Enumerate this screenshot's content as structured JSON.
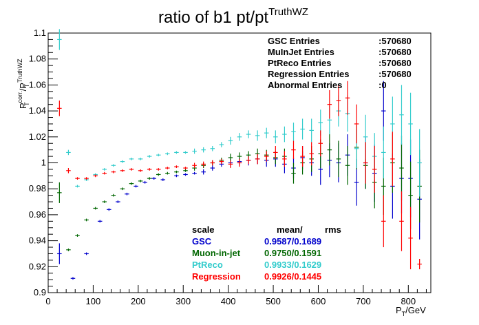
{
  "chart_data": {
    "type": "scatter",
    "title": "ratio of b1 pt/pt",
    "title_sup": "TruthWZ",
    "xlabel": "P",
    "xlabel_sub": "T",
    "xlabel_unit": "/GeV",
    "ylabel_parts": [
      "P",
      "corr.",
      "T",
      "/P",
      "TruthWZ",
      "T"
    ],
    "xlim": [
      0,
      850
    ],
    "ylim": [
      0.9,
      1.1
    ],
    "x_major_ticks": [
      0,
      100,
      200,
      300,
      400,
      500,
      600,
      700,
      800
    ],
    "x_tick_labels": [
      "0",
      "100",
      "200",
      "300",
      "400",
      "500",
      "600",
      "700",
      "800"
    ],
    "y_major_ticks": [
      0.9,
      0.92,
      0.94,
      0.96,
      0.98,
      1,
      1.02,
      1.04,
      1.06,
      1.08,
      1.1
    ],
    "y_tick_labels": [
      "0.9",
      "0.92",
      "0.94",
      "0.96",
      "0.98",
      "1",
      "1.02",
      "1.04",
      "1.06",
      "1.08",
      "1.1"
    ],
    "grid": false,
    "legend_position": "top-right",
    "entries_box": [
      {
        "label": "GSC Entries",
        "value": ":570680"
      },
      {
        "label": "MuInJet Entries",
        "value": ":570680"
      },
      {
        "label": "PtReco Entries",
        "value": ":570680"
      },
      {
        "label": "Regression Entries",
        "value": ":570680"
      },
      {
        "label": "Abnormal Entries",
        "value": ":0"
      }
    ],
    "stats_header": {
      "col1": "scale",
      "col2": "mean/",
      "col3": "rms"
    },
    "stats": [
      {
        "name": "GSC",
        "value": "0.9587/0.1689",
        "color": "#0000cc"
      },
      {
        "name": "Muon-in-jet",
        "value": "0.9750/0.1591",
        "color": "#006600"
      },
      {
        "name": "PtReco",
        "value": "0.9933/0.1629",
        "color": "#33cccc"
      },
      {
        "name": "Regression",
        "value": "0.9926/0.1445",
        "color": "#ff0000"
      }
    ],
    "bin_halfwidth": 5,
    "series": [
      {
        "color": "#0000cc",
        "points": [
          [
            25,
            0.93,
            0.008
          ],
          [
            55,
            0.911,
            0.001
          ],
          [
            85,
            0.93,
            0.001
          ],
          [
            115,
            0.955,
            0.001
          ],
          [
            135,
            0.964,
            0.001
          ],
          [
            155,
            0.97,
            0.001
          ],
          [
            175,
            0.976,
            0.001
          ],
          [
            195,
            0.982,
            0.001
          ],
          [
            215,
            0.985,
            0.001
          ],
          [
            235,
            0.988,
            0.001
          ],
          [
            255,
            0.987,
            0.001
          ],
          [
            285,
            0.99,
            0.001
          ],
          [
            305,
            0.991,
            0.001
          ],
          [
            325,
            0.992,
            0.001
          ],
          [
            345,
            0.993,
            0.002
          ],
          [
            365,
            0.996,
            0.002
          ],
          [
            385,
            0.999,
            0.002
          ],
          [
            405,
            1.0,
            0.003
          ],
          [
            425,
            1.001,
            0.003
          ],
          [
            445,
            1.002,
            0.004
          ],
          [
            465,
            1.003,
            0.004
          ],
          [
            485,
            1.002,
            0.005
          ],
          [
            505,
            1.003,
            0.006
          ],
          [
            525,
            0.999,
            0.007
          ],
          [
            545,
            0.996,
            0.008
          ],
          [
            565,
            1.004,
            0.009
          ],
          [
            585,
            1.0,
            0.01
          ],
          [
            605,
            0.995,
            0.012
          ],
          [
            625,
            1.002,
            0.013
          ],
          [
            645,
            1.0,
            0.015
          ],
          [
            665,
            1.006,
            0.016
          ],
          [
            685,
            0.985,
            0.018
          ],
          [
            705,
            1.0,
            0.02
          ],
          [
            725,
            0.992,
            0.022
          ],
          [
            745,
            1.04,
            0.023
          ],
          [
            765,
            0.982,
            0.025
          ],
          [
            785,
            0.988,
            0.027
          ],
          [
            805,
            0.988,
            0.03
          ],
          [
            825,
            0.972,
            0.031
          ]
        ]
      },
      {
        "color": "#006600",
        "points": [
          [
            25,
            0.977,
            0.008
          ],
          [
            45,
            0.933,
            0.001
          ],
          [
            65,
            0.944,
            0.001
          ],
          [
            85,
            0.956,
            0.001
          ],
          [
            105,
            0.965,
            0.001
          ],
          [
            125,
            0.97,
            0.001
          ],
          [
            145,
            0.975,
            0.001
          ],
          [
            165,
            0.98,
            0.001
          ],
          [
            185,
            0.984,
            0.001
          ],
          [
            205,
            0.986,
            0.001
          ],
          [
            225,
            0.988,
            0.001
          ],
          [
            245,
            0.991,
            0.001
          ],
          [
            265,
            0.992,
            0.001
          ],
          [
            285,
            0.993,
            0.001
          ],
          [
            305,
            0.994,
            0.001
          ],
          [
            325,
            0.996,
            0.002
          ],
          [
            345,
            0.998,
            0.002
          ],
          [
            365,
            1.0,
            0.002
          ],
          [
            385,
            1.002,
            0.002
          ],
          [
            405,
            1.004,
            0.003
          ],
          [
            425,
            1.005,
            0.003
          ],
          [
            445,
            1.006,
            0.003
          ],
          [
            465,
            1.007,
            0.004
          ],
          [
            485,
            1.006,
            0.004
          ],
          [
            505,
            1.004,
            0.005
          ],
          [
            525,
            1.005,
            0.006
          ],
          [
            545,
            0.992,
            0.008
          ],
          [
            565,
            1.0,
            0.009
          ],
          [
            585,
            1.003,
            0.01
          ],
          [
            605,
            1.007,
            0.011
          ],
          [
            625,
            1.01,
            0.012
          ],
          [
            645,
            1.003,
            0.014
          ],
          [
            665,
            0.998,
            0.015
          ],
          [
            685,
            1.012,
            0.017
          ],
          [
            705,
            0.998,
            0.018
          ],
          [
            725,
            0.985,
            0.02
          ],
          [
            745,
            0.982,
            0.022
          ],
          [
            765,
            1.0,
            0.023
          ],
          [
            785,
            0.996,
            0.025
          ],
          [
            805,
            0.975,
            0.026
          ],
          [
            825,
            0.982,
            0.028
          ]
        ]
      },
      {
        "color": "#33cccc",
        "points": [
          [
            25,
            1.095,
            0.008
          ],
          [
            45,
            1.008,
            0.002
          ],
          [
            65,
            0.982,
            0.001
          ],
          [
            85,
            0.987,
            0.001
          ],
          [
            105,
            0.991,
            0.001
          ],
          [
            125,
            0.995,
            0.001
          ],
          [
            145,
            0.998,
            0.001
          ],
          [
            165,
            1.001,
            0.001
          ],
          [
            185,
            1.003,
            0.001
          ],
          [
            205,
            1.003,
            0.001
          ],
          [
            225,
            1.005,
            0.001
          ],
          [
            245,
            1.006,
            0.001
          ],
          [
            265,
            1.007,
            0.001
          ],
          [
            285,
            1.008,
            0.001
          ],
          [
            305,
            1.008,
            0.001
          ],
          [
            325,
            1.009,
            0.002
          ],
          [
            345,
            1.01,
            0.002
          ],
          [
            365,
            1.011,
            0.002
          ],
          [
            385,
            1.014,
            0.002
          ],
          [
            405,
            1.017,
            0.003
          ],
          [
            425,
            1.02,
            0.003
          ],
          [
            445,
            1.022,
            0.003
          ],
          [
            465,
            1.021,
            0.004
          ],
          [
            485,
            1.023,
            0.004
          ],
          [
            505,
            1.02,
            0.005
          ],
          [
            525,
            1.022,
            0.006
          ],
          [
            545,
            1.024,
            0.007
          ],
          [
            565,
            1.026,
            0.008
          ],
          [
            585,
            1.025,
            0.009
          ],
          [
            605,
            1.031,
            0.01
          ],
          [
            625,
            1.033,
            0.011
          ],
          [
            645,
            1.04,
            0.012
          ],
          [
            665,
            1.038,
            0.014
          ],
          [
            685,
            1.011,
            0.015
          ],
          [
            705,
            1.02,
            0.017
          ],
          [
            725,
            1.005,
            0.018
          ],
          [
            745,
            1.008,
            0.02
          ],
          [
            765,
            1.03,
            0.021
          ],
          [
            785,
            1.037,
            0.023
          ],
          [
            805,
            1.03,
            0.024
          ],
          [
            825,
            1.0,
            0.026
          ]
        ]
      },
      {
        "color": "#ff0000",
        "points": [
          [
            25,
            1.042,
            0.006
          ],
          [
            45,
            0.994,
            0.002
          ],
          [
            65,
            0.988,
            0.001
          ],
          [
            85,
            0.988,
            0.001
          ],
          [
            105,
            0.99,
            0.001
          ],
          [
            125,
            0.992,
            0.001
          ],
          [
            145,
            0.993,
            0.001
          ],
          [
            165,
            0.994,
            0.001
          ],
          [
            185,
            0.995,
            0.001
          ],
          [
            205,
            0.994,
            0.001
          ],
          [
            225,
            0.995,
            0.001
          ],
          [
            245,
            0.995,
            0.001
          ],
          [
            265,
            0.996,
            0.001
          ],
          [
            285,
            0.997,
            0.001
          ],
          [
            305,
            0.996,
            0.001
          ],
          [
            325,
            0.998,
            0.002
          ],
          [
            345,
            0.999,
            0.002
          ],
          [
            365,
            1.0,
            0.002
          ],
          [
            385,
            1.001,
            0.002
          ],
          [
            405,
            0.999,
            0.003
          ],
          [
            425,
            1.0,
            0.003
          ],
          [
            445,
            1.002,
            0.003
          ],
          [
            465,
            1.003,
            0.004
          ],
          [
            485,
            1.005,
            0.004
          ],
          [
            505,
            1.008,
            0.005
          ],
          [
            525,
            1.003,
            0.006
          ],
          [
            545,
            1.01,
            0.007
          ],
          [
            565,
            1.005,
            0.008
          ],
          [
            585,
            1.007,
            0.009
          ],
          [
            605,
            1.015,
            0.01
          ],
          [
            625,
            1.045,
            0.011
          ],
          [
            645,
            1.048,
            0.012
          ],
          [
            665,
            1.05,
            0.013
          ],
          [
            685,
            1.03,
            0.015
          ],
          [
            705,
            1.0,
            0.016
          ],
          [
            725,
            0.995,
            0.018
          ],
          [
            745,
            0.955,
            0.02
          ],
          [
            765,
            1.003,
            0.021
          ],
          [
            785,
            0.955,
            0.023
          ],
          [
            805,
            0.942,
            0.024
          ],
          [
            825,
            0.922,
            0.004
          ]
        ]
      }
    ]
  }
}
